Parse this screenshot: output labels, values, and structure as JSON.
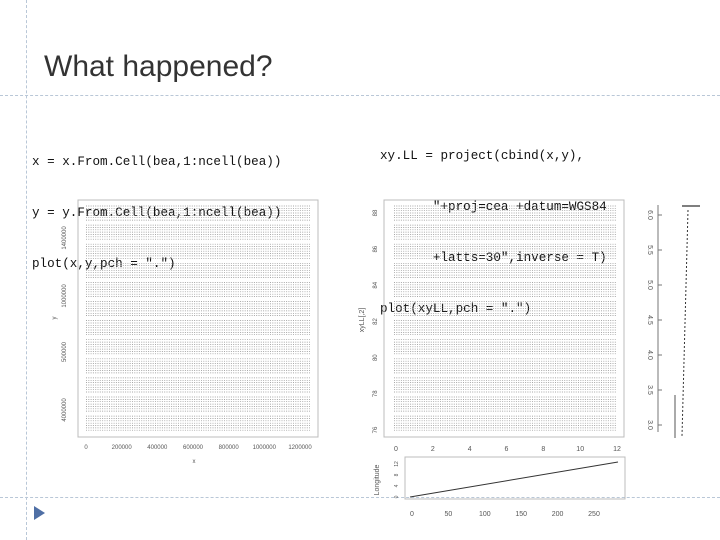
{
  "slide": {
    "title": "What happened?",
    "left_code": [
      "x = x.From.Cell(bea,1:ncell(bea))",
      "y = y.From.Cell(bea,1:ncell(bea))",
      "plot(x,y,pch = \".\")"
    ],
    "right_code": [
      "xy.LL = project(cbind(x,y),",
      "       \"+proj=cea +datum=WGS84",
      "       +latts=30\",inverse = T)",
      "plot(xyLL,pch = \".\")"
    ]
  },
  "colors": {
    "accent": "#4f6fa5",
    "rule": "#b9c7d7",
    "grid": "#c8c8c8"
  },
  "icons": {
    "marker": "triangle-bullet-icon"
  },
  "chart_data": [
    {
      "type": "scatter",
      "description_role": "left plot",
      "x_tick_labels": [
        "0",
        "200000",
        "400000",
        "600000",
        "800000",
        "1000000",
        "1200000"
      ],
      "y_tick_labels": [
        "4000000",
        "500000",
        "1000000",
        "1400000"
      ],
      "xlabel": "x",
      "ylabel": "y"
    },
    {
      "type": "scatter",
      "description_role": "middle plot",
      "x_tick_labels": [
        "0",
        "2",
        "4",
        "6",
        "8",
        "10",
        "12"
      ],
      "y_tick_labels": [
        "88",
        "86",
        "84",
        "82",
        "80",
        "78",
        "76"
      ],
      "xlabel": "",
      "ylabel": "xyLL[,2]"
    },
    {
      "type": "line",
      "description_role": "bottom plot",
      "x_tick_labels": [
        "0",
        "50",
        "100",
        "150",
        "200",
        "250"
      ],
      "y_tick_labels": [
        "0",
        "4",
        "8",
        "12"
      ],
      "xlabel": "",
      "ylabel": "Longitude"
    },
    {
      "type": "line",
      "description_role": "right cropped plot",
      "y_tick_labels": [
        "6.0",
        "5.5",
        "5.0",
        "4.5",
        "4.0",
        "3.5",
        "3.0"
      ],
      "xlabel": "",
      "ylabel": ""
    }
  ]
}
